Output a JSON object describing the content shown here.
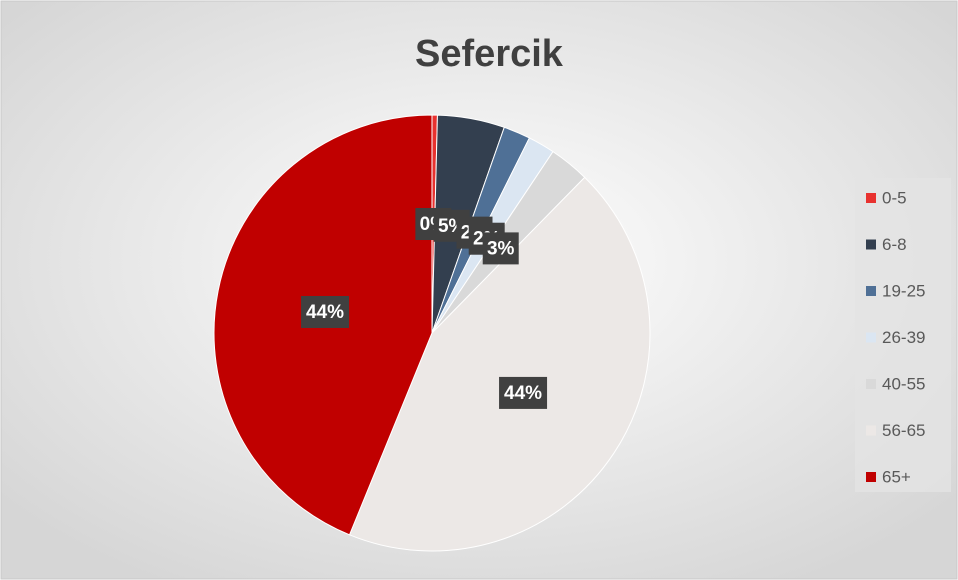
{
  "chart_data": {
    "type": "pie",
    "title": "Sefercik",
    "categories": [
      "0-5",
      "6-8",
      "19-25",
      "26-39",
      "40-55",
      "56-65",
      "65+"
    ],
    "values": [
      0.4,
      5,
      2,
      2,
      3,
      44,
      44
    ],
    "value_labels": [
      "0%",
      "5%",
      "2%",
      "2%",
      "3%",
      "44%",
      "44%"
    ],
    "colors": [
      "#e8322f",
      "#333f4f",
      "#4f7096",
      "#dbe6f2",
      "#d9d9d9",
      "#ece8e6",
      "#c00000"
    ],
    "legend": "right"
  }
}
